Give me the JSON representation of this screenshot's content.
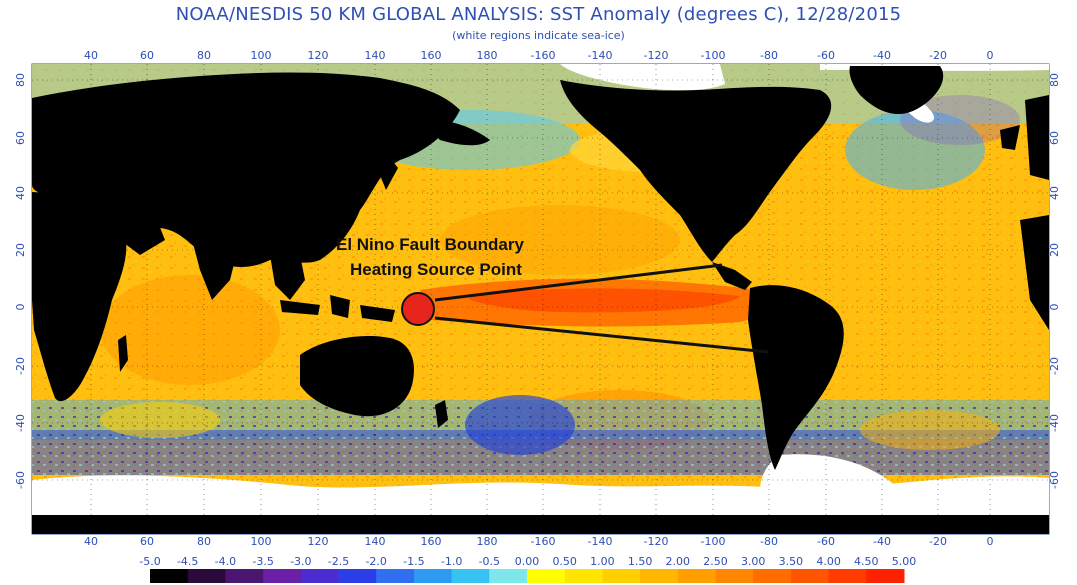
{
  "header": {
    "title": "NOAA/NESDIS 50 KM GLOBAL ANALYSIS: SST Anomaly (degrees C), 12/28/2015",
    "subtitle": "(white regions indicate sea-ice)"
  },
  "map": {
    "lon_ticks": [
      "40",
      "60",
      "80",
      "100",
      "120",
      "140",
      "160",
      "180",
      "-160",
      "-140",
      "-120",
      "-100",
      "-80",
      "-60",
      "-40",
      "-20",
      "0"
    ],
    "lat_ticks": [
      "80",
      "60",
      "40",
      "20",
      "0",
      "-20",
      "-40",
      "-60"
    ],
    "colors": {
      "land": "#000000",
      "sea_ice": "#ffffff",
      "frame": "#2e4fb5",
      "warm_ocean": "#ffb400",
      "hot_ocean": "#ff6a00",
      "cool_ocean": "#33bdea",
      "cold_ocean": "#1f46d6"
    }
  },
  "annotation": {
    "line1": "El Nino Fault Boundary",
    "line2": "Heating Source Point",
    "marker_color": "#e8251c"
  },
  "colorbar": {
    "labels": [
      "-5.0",
      "-4.5",
      "-4.0",
      "-3.5",
      "-3.0",
      "-2.5",
      "-2.0",
      "-1.5",
      "-1.0",
      "-0.5",
      "0.00",
      "0.50",
      "1.00",
      "1.50",
      "2.00",
      "2.50",
      "3.00",
      "3.50",
      "4.00",
      "4.50",
      "5.00"
    ],
    "colors": [
      "#000000",
      "#2a0a3a",
      "#4a1670",
      "#6a1fa6",
      "#4b2cd0",
      "#2b3ee8",
      "#2f6ff0",
      "#2f9af2",
      "#38c4f2",
      "#7fe6ec",
      "#ffff00",
      "#ffe600",
      "#ffcf00",
      "#ffb700",
      "#ff9f00",
      "#ff8600",
      "#ff6d00",
      "#ff5400",
      "#ff3b00",
      "#ff2200"
    ]
  }
}
